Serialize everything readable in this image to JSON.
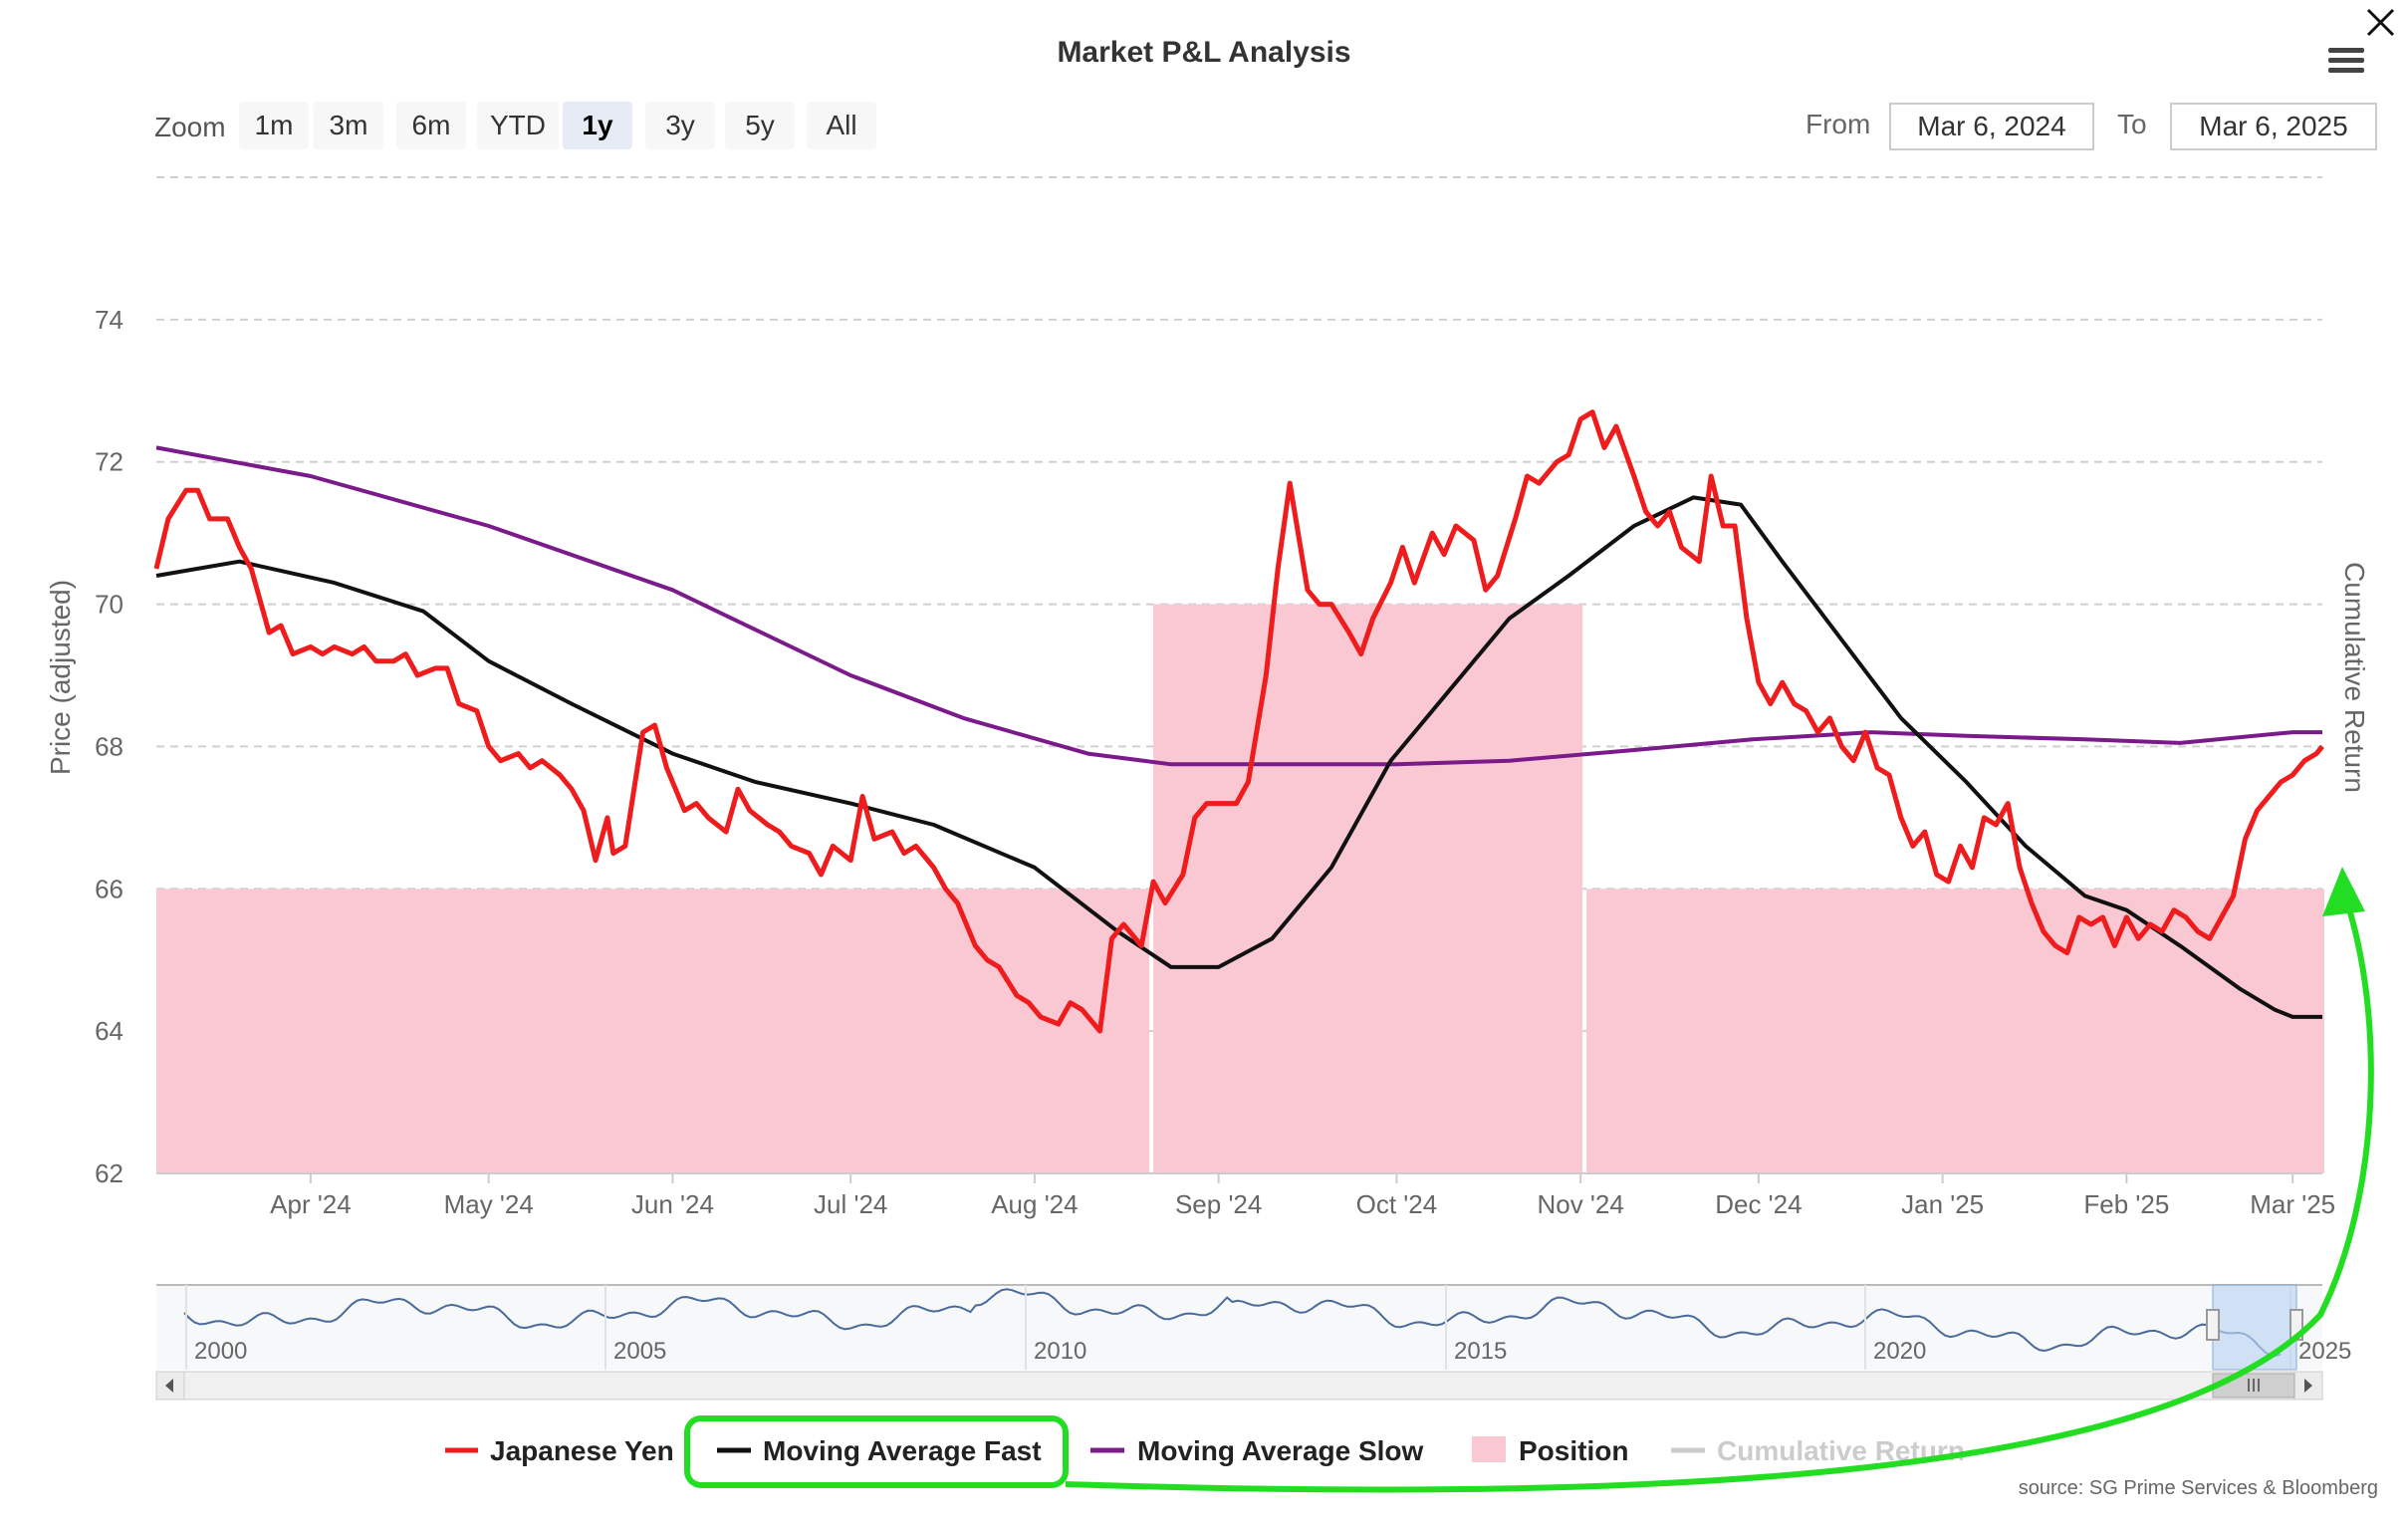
{
  "title": "Market P&L Analysis",
  "zoom": {
    "label": "Zoom",
    "buttons": [
      "1m",
      "3m",
      "6m",
      "YTD",
      "1y",
      "3y",
      "5y",
      "All"
    ],
    "selected": "1y"
  },
  "range": {
    "from_label": "From",
    "from_value": "Mar 6, 2024",
    "to_label": "To",
    "to_value": "Mar 6, 2025"
  },
  "icons": {
    "close": "close-icon",
    "menu": "hamburger-menu-icon"
  },
  "source": "source: SG Prime Services & Bloomberg",
  "colors": {
    "yen": "#ee1c1c",
    "ma_fast": "#111111",
    "ma_slow": "#7b1a8a",
    "position": "#f9c8d3",
    "cumulative": "#cccccc",
    "annotation": "#22dd22",
    "navigator": "#4a6b9a"
  },
  "navigator": {
    "x_tick_labels": [
      "2000",
      "2005",
      "2010",
      "2015",
      "2020",
      "2025"
    ],
    "scrollbar_grip": "III"
  },
  "chart_data": {
    "type": "line",
    "title": "Market P&L Analysis",
    "ylabel": "Price (adjusted)",
    "y2label": "Cumulative Return",
    "ylim": [
      62,
      76
    ],
    "y_ticks": [
      62,
      64,
      66,
      68,
      70,
      72,
      74
    ],
    "x_range": [
      "2024-03-06",
      "2025-03-06"
    ],
    "x_tick_labels": [
      "Apr '24",
      "May '24",
      "Jun '24",
      "Jul '24",
      "Aug '24",
      "Sep '24",
      "Oct '24",
      "Nov '24",
      "Dec '24",
      "Jan '25",
      "Feb '25",
      "Mar '25"
    ],
    "x_tick_dates": [
      "2024-04-01",
      "2024-05-01",
      "2024-06-01",
      "2024-07-01",
      "2024-08-01",
      "2024-09-01",
      "2024-10-01",
      "2024-11-01",
      "2024-12-01",
      "2025-01-01",
      "2025-02-01",
      "2025-03-01"
    ],
    "grid": true,
    "legend_position": "bottom",
    "series": [
      {
        "name": "Japanese Yen",
        "kind": "line",
        "points": [
          [
            "2024-03-06",
            70.5
          ],
          [
            "2024-03-08",
            71.2
          ],
          [
            "2024-03-11",
            71.6
          ],
          [
            "2024-03-13",
            71.6
          ],
          [
            "2024-03-15",
            71.2
          ],
          [
            "2024-03-18",
            71.2
          ],
          [
            "2024-03-20",
            70.8
          ],
          [
            "2024-03-22",
            70.5
          ],
          [
            "2024-03-25",
            69.6
          ],
          [
            "2024-03-27",
            69.7
          ],
          [
            "2024-03-29",
            69.3
          ],
          [
            "2024-04-01",
            69.4
          ],
          [
            "2024-04-03",
            69.3
          ],
          [
            "2024-04-05",
            69.4
          ],
          [
            "2024-04-08",
            69.3
          ],
          [
            "2024-04-10",
            69.4
          ],
          [
            "2024-04-12",
            69.2
          ],
          [
            "2024-04-15",
            69.2
          ],
          [
            "2024-04-17",
            69.3
          ],
          [
            "2024-04-19",
            69.0
          ],
          [
            "2024-04-22",
            69.1
          ],
          [
            "2024-04-24",
            69.1
          ],
          [
            "2024-04-26",
            68.6
          ],
          [
            "2024-04-29",
            68.5
          ],
          [
            "2024-05-01",
            68.0
          ],
          [
            "2024-05-03",
            67.8
          ],
          [
            "2024-05-06",
            67.9
          ],
          [
            "2024-05-08",
            67.7
          ],
          [
            "2024-05-10",
            67.8
          ],
          [
            "2024-05-13",
            67.6
          ],
          [
            "2024-05-15",
            67.4
          ],
          [
            "2024-05-17",
            67.1
          ],
          [
            "2024-05-19",
            66.4
          ],
          [
            "2024-05-21",
            67.0
          ],
          [
            "2024-05-22",
            66.5
          ],
          [
            "2024-05-24",
            66.6
          ],
          [
            "2024-05-27",
            68.2
          ],
          [
            "2024-05-29",
            68.3
          ],
          [
            "2024-05-31",
            67.7
          ],
          [
            "2024-06-03",
            67.1
          ],
          [
            "2024-06-05",
            67.2
          ],
          [
            "2024-06-07",
            67.0
          ],
          [
            "2024-06-10",
            66.8
          ],
          [
            "2024-06-12",
            67.4
          ],
          [
            "2024-06-14",
            67.1
          ],
          [
            "2024-06-17",
            66.9
          ],
          [
            "2024-06-19",
            66.8
          ],
          [
            "2024-06-21",
            66.6
          ],
          [
            "2024-06-24",
            66.5
          ],
          [
            "2024-06-26",
            66.2
          ],
          [
            "2024-06-28",
            66.6
          ],
          [
            "2024-07-01",
            66.4
          ],
          [
            "2024-07-03",
            67.3
          ],
          [
            "2024-07-05",
            66.7
          ],
          [
            "2024-07-08",
            66.8
          ],
          [
            "2024-07-10",
            66.5
          ],
          [
            "2024-07-12",
            66.6
          ],
          [
            "2024-07-15",
            66.3
          ],
          [
            "2024-07-17",
            66.0
          ],
          [
            "2024-07-19",
            65.8
          ],
          [
            "2024-07-22",
            65.2
          ],
          [
            "2024-07-24",
            65.0
          ],
          [
            "2024-07-26",
            64.9
          ],
          [
            "2024-07-29",
            64.5
          ],
          [
            "2024-07-31",
            64.4
          ],
          [
            "2024-08-02",
            64.2
          ],
          [
            "2024-08-05",
            64.1
          ],
          [
            "2024-08-07",
            64.4
          ],
          [
            "2024-08-09",
            64.3
          ],
          [
            "2024-08-12",
            64.0
          ],
          [
            "2024-08-14",
            65.3
          ],
          [
            "2024-08-16",
            65.5
          ],
          [
            "2024-08-19",
            65.2
          ],
          [
            "2024-08-21",
            66.1
          ],
          [
            "2024-08-23",
            65.8
          ],
          [
            "2024-08-26",
            66.2
          ],
          [
            "2024-08-28",
            67.0
          ],
          [
            "2024-08-30",
            67.2
          ],
          [
            "2024-09-02",
            67.2
          ],
          [
            "2024-09-04",
            67.2
          ],
          [
            "2024-09-06",
            67.5
          ],
          [
            "2024-09-09",
            69.0
          ],
          [
            "2024-09-11",
            70.5
          ],
          [
            "2024-09-13",
            71.7
          ],
          [
            "2024-09-16",
            70.2
          ],
          [
            "2024-09-18",
            70.0
          ],
          [
            "2024-09-20",
            70.0
          ],
          [
            "2024-09-23",
            69.6
          ],
          [
            "2024-09-25",
            69.3
          ],
          [
            "2024-09-27",
            69.8
          ],
          [
            "2024-09-30",
            70.3
          ],
          [
            "2024-10-02",
            70.8
          ],
          [
            "2024-10-04",
            70.3
          ],
          [
            "2024-10-07",
            71.0
          ],
          [
            "2024-10-09",
            70.7
          ],
          [
            "2024-10-11",
            71.1
          ],
          [
            "2024-10-14",
            70.9
          ],
          [
            "2024-10-16",
            70.2
          ],
          [
            "2024-10-18",
            70.4
          ],
          [
            "2024-10-21",
            71.2
          ],
          [
            "2024-10-23",
            71.8
          ],
          [
            "2024-10-25",
            71.7
          ],
          [
            "2024-10-28",
            72.0
          ],
          [
            "2024-10-30",
            72.1
          ],
          [
            "2024-11-01",
            72.6
          ],
          [
            "2024-11-03",
            72.7
          ],
          [
            "2024-11-05",
            72.2
          ],
          [
            "2024-11-07",
            72.5
          ],
          [
            "2024-11-10",
            71.8
          ],
          [
            "2024-11-12",
            71.3
          ],
          [
            "2024-11-14",
            71.1
          ],
          [
            "2024-11-16",
            71.3
          ],
          [
            "2024-11-18",
            70.8
          ],
          [
            "2024-11-21",
            70.6
          ],
          [
            "2024-11-23",
            71.8
          ],
          [
            "2024-11-25",
            71.1
          ],
          [
            "2024-11-27",
            71.1
          ],
          [
            "2024-11-29",
            69.8
          ],
          [
            "2024-12-01",
            68.9
          ],
          [
            "2024-12-03",
            68.6
          ],
          [
            "2024-12-05",
            68.9
          ],
          [
            "2024-12-07",
            68.6
          ],
          [
            "2024-12-09",
            68.5
          ],
          [
            "2024-12-11",
            68.2
          ],
          [
            "2024-12-13",
            68.4
          ],
          [
            "2024-12-15",
            68.0
          ],
          [
            "2024-12-17",
            67.8
          ],
          [
            "2024-12-19",
            68.2
          ],
          [
            "2024-12-21",
            67.7
          ],
          [
            "2024-12-23",
            67.6
          ],
          [
            "2024-12-25",
            67.0
          ],
          [
            "2024-12-27",
            66.6
          ],
          [
            "2024-12-29",
            66.8
          ],
          [
            "2024-12-31",
            66.2
          ],
          [
            "2025-01-02",
            66.1
          ],
          [
            "2025-01-04",
            66.6
          ],
          [
            "2025-01-06",
            66.3
          ],
          [
            "2025-01-08",
            67.0
          ],
          [
            "2025-01-10",
            66.9
          ],
          [
            "2025-01-12",
            67.2
          ],
          [
            "2025-01-14",
            66.3
          ],
          [
            "2025-01-16",
            65.8
          ],
          [
            "2025-01-18",
            65.4
          ],
          [
            "2025-01-20",
            65.2
          ],
          [
            "2025-01-22",
            65.1
          ],
          [
            "2025-01-24",
            65.6
          ],
          [
            "2025-01-26",
            65.5
          ],
          [
            "2025-01-28",
            65.6
          ],
          [
            "2025-01-30",
            65.2
          ],
          [
            "2025-02-01",
            65.6
          ],
          [
            "2025-02-03",
            65.3
          ],
          [
            "2025-02-05",
            65.5
          ],
          [
            "2025-02-07",
            65.4
          ],
          [
            "2025-02-09",
            65.7
          ],
          [
            "2025-02-11",
            65.6
          ],
          [
            "2025-02-13",
            65.4
          ],
          [
            "2025-02-15",
            65.3
          ],
          [
            "2025-02-17",
            65.6
          ],
          [
            "2025-02-19",
            65.9
          ],
          [
            "2025-02-21",
            66.7
          ],
          [
            "2025-02-23",
            67.1
          ],
          [
            "2025-02-25",
            67.3
          ],
          [
            "2025-02-27",
            67.5
          ],
          [
            "2025-03-01",
            67.6
          ],
          [
            "2025-03-03",
            67.8
          ],
          [
            "2025-03-05",
            67.9
          ],
          [
            "2025-03-06",
            68.0
          ]
        ]
      },
      {
        "name": "Moving Average Fast",
        "kind": "line",
        "points": [
          [
            "2024-03-06",
            70.4
          ],
          [
            "2024-03-20",
            70.6
          ],
          [
            "2024-04-05",
            70.3
          ],
          [
            "2024-04-20",
            69.9
          ],
          [
            "2024-05-01",
            69.2
          ],
          [
            "2024-05-15",
            68.6
          ],
          [
            "2024-06-01",
            67.9
          ],
          [
            "2024-06-15",
            67.5
          ],
          [
            "2024-07-01",
            67.2
          ],
          [
            "2024-07-15",
            66.9
          ],
          [
            "2024-08-01",
            66.3
          ],
          [
            "2024-08-15",
            65.4
          ],
          [
            "2024-08-24",
            64.9
          ],
          [
            "2024-09-01",
            64.9
          ],
          [
            "2024-09-10",
            65.3
          ],
          [
            "2024-09-20",
            66.3
          ],
          [
            "2024-09-30",
            67.8
          ],
          [
            "2024-10-10",
            68.8
          ],
          [
            "2024-10-20",
            69.8
          ],
          [
            "2024-10-30",
            70.4
          ],
          [
            "2024-11-10",
            71.1
          ],
          [
            "2024-11-20",
            71.5
          ],
          [
            "2024-11-28",
            71.4
          ],
          [
            "2024-12-05",
            70.6
          ],
          [
            "2024-12-15",
            69.5
          ],
          [
            "2024-12-25",
            68.4
          ],
          [
            "2025-01-05",
            67.5
          ],
          [
            "2025-01-15",
            66.6
          ],
          [
            "2025-01-25",
            65.9
          ],
          [
            "2025-02-01",
            65.7
          ],
          [
            "2025-02-10",
            65.2
          ],
          [
            "2025-02-20",
            64.6
          ],
          [
            "2025-02-26",
            64.3
          ],
          [
            "2025-03-01",
            64.2
          ],
          [
            "2025-03-06",
            64.2
          ]
        ]
      },
      {
        "name": "Moving Average Slow",
        "kind": "line",
        "points": [
          [
            "2024-03-06",
            72.2
          ],
          [
            "2024-04-01",
            71.8
          ],
          [
            "2024-05-01",
            71.1
          ],
          [
            "2024-06-01",
            70.2
          ],
          [
            "2024-07-01",
            69.0
          ],
          [
            "2024-07-20",
            68.4
          ],
          [
            "2024-08-10",
            67.9
          ],
          [
            "2024-08-24",
            67.75
          ],
          [
            "2024-09-10",
            67.75
          ],
          [
            "2024-10-01",
            67.75
          ],
          [
            "2024-10-20",
            67.8
          ],
          [
            "2024-11-10",
            67.95
          ],
          [
            "2024-11-30",
            68.1
          ],
          [
            "2024-12-20",
            68.2
          ],
          [
            "2025-01-05",
            68.15
          ],
          [
            "2025-01-25",
            68.1
          ],
          [
            "2025-02-10",
            68.05
          ],
          [
            "2025-03-01",
            68.2
          ],
          [
            "2025-03-06",
            68.2
          ]
        ]
      },
      {
        "name": "Position",
        "kind": "area",
        "segments": [
          {
            "start": "2024-03-06",
            "end": "2024-08-20",
            "value": 66
          },
          {
            "start": "2024-08-21",
            "end": "2024-11-01",
            "value": 70
          },
          {
            "start": "2024-11-02",
            "end": "2025-03-06",
            "value": 66
          }
        ]
      },
      {
        "name": "Cumulative Return",
        "kind": "line",
        "hidden": true,
        "points": []
      }
    ]
  }
}
